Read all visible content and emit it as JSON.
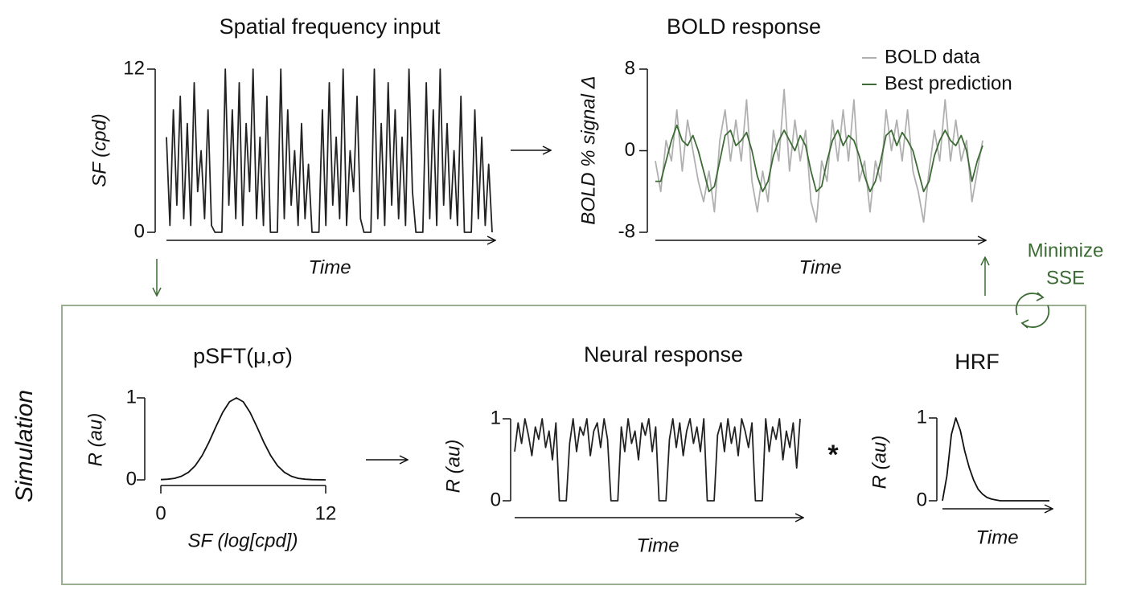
{
  "chart_data": [
    {
      "type": "line",
      "title": "Spatial frequency input",
      "ylabel": "SF (cpd)",
      "xlabel": "Time",
      "ylim": [
        0,
        12
      ],
      "yticks": [
        0,
        12
      ],
      "color": "#222222",
      "values": [
        7,
        0.5,
        9,
        2,
        10,
        1,
        8,
        0.5,
        11,
        3,
        6,
        1,
        9,
        0.5,
        0,
        0,
        0,
        12,
        2,
        9,
        1,
        11,
        0.5,
        8,
        3,
        12,
        1,
        7,
        0.5,
        10,
        0,
        0,
        0,
        12,
        1,
        9,
        2,
        6,
        0.5,
        8,
        1,
        5,
        0,
        0,
        0,
        9,
        0.5,
        11,
        2,
        7,
        1,
        12,
        0.5,
        6,
        3,
        10,
        1,
        0,
        0,
        0,
        12,
        1,
        8,
        0.5,
        11,
        2,
        9,
        1,
        7,
        0.5,
        12,
        3,
        0,
        0,
        0,
        11,
        1,
        9,
        0.5,
        12,
        2,
        8,
        1,
        6,
        0.5,
        10,
        0,
        0,
        0,
        9,
        1,
        7,
        0.5,
        5,
        0
      ]
    },
    {
      "type": "line",
      "title": "BOLD response",
      "ylabel": "BOLD % signal Δ",
      "xlabel": "Time",
      "ylim": [
        -8,
        8
      ],
      "yticks": [
        {
          "value": -8,
          "label": "-8"
        },
        0,
        8
      ],
      "series": [
        {
          "name": "BOLD data",
          "color": "#b0b0b0",
          "values": [
            -1,
            -4,
            1,
            -1,
            4,
            -2,
            3,
            0,
            -3,
            -5,
            -2,
            -6,
            1,
            4,
            -1,
            3,
            -1,
            5,
            -3,
            -6,
            -2,
            -5,
            2,
            -1,
            6,
            -2,
            3,
            -1,
            2,
            -5,
            -7,
            -1,
            -3,
            3,
            -1,
            4,
            -1,
            5,
            -3,
            -1,
            -6,
            -1,
            -3,
            4,
            0,
            3,
            -1,
            4,
            -2,
            -4,
            -7,
            -2,
            2,
            -1,
            5,
            -1,
            3,
            -1,
            1,
            -5,
            -2,
            1
          ]
        },
        {
          "name": "Best prediction",
          "color": "#3d6b35",
          "values": [
            -3,
            -3,
            -1,
            1,
            2.5,
            1,
            0.5,
            1.5,
            0,
            -2,
            -4,
            -3.5,
            -1,
            1.5,
            2,
            0.5,
            1,
            1.8,
            0,
            -2.5,
            -4,
            -3,
            -0.5,
            1,
            2,
            1,
            0,
            1.5,
            0.5,
            -2,
            -4,
            -3.5,
            -1,
            1,
            2,
            0.5,
            1.5,
            1,
            -0.5,
            -2.5,
            -4,
            -3,
            -1,
            1.5,
            2,
            0.5,
            1.8,
            1,
            0,
            -2,
            -4,
            -3,
            -0.5,
            1,
            2,
            1,
            0.5,
            1.5,
            0,
            -3,
            -1,
            0.5
          ]
        }
      ]
    },
    {
      "type": "line",
      "title": "pSFT(μ,σ)",
      "ylabel": "R (au)",
      "xlabel": "SF (log[cpd])",
      "xlim": [
        0,
        12
      ],
      "xticks": [
        0,
        12
      ],
      "ylim": [
        0,
        1
      ],
      "yticks": [
        0,
        1
      ],
      "color": "#111111",
      "x": [
        0,
        0.5,
        1,
        1.5,
        2,
        2.5,
        3,
        3.5,
        4,
        4.5,
        5,
        5.5,
        6,
        6.5,
        7,
        7.5,
        8,
        8.5,
        9,
        9.5,
        10,
        10.5,
        11,
        11.5,
        12
      ],
      "values": [
        0.003,
        0.008,
        0.019,
        0.044,
        0.091,
        0.172,
        0.295,
        0.458,
        0.645,
        0.823,
        0.952,
        1,
        0.952,
        0.823,
        0.645,
        0.458,
        0.295,
        0.172,
        0.091,
        0.044,
        0.019,
        0.008,
        0.003,
        0.001,
        0
      ]
    },
    {
      "type": "line",
      "title": "Neural response",
      "ylabel": "R (au)",
      "xlabel": "Time",
      "ylim": [
        0,
        1
      ],
      "yticks": [
        0,
        1
      ],
      "color": "#222222",
      "values": [
        0.6,
        0.95,
        0.7,
        1,
        0.8,
        0.55,
        0.9,
        0.75,
        1,
        0.65,
        0.85,
        0.5,
        0.95,
        0,
        0,
        0,
        0.7,
        1,
        0.6,
        0.9,
        0.8,
        1,
        0.55,
        0.85,
        0.95,
        0.65,
        1,
        0.75,
        0,
        0,
        0,
        0.9,
        0.6,
        1,
        0.7,
        0.85,
        0.5,
        0.95,
        0.8,
        1,
        0.6,
        0.9,
        0,
        0,
        0,
        0.75,
        1,
        0.65,
        0.95,
        0.55,
        0.85,
        1,
        0.7,
        0.9,
        0.6,
        1,
        0,
        0,
        0,
        0.8,
        0.95,
        0.6,
        1,
        0.7,
        0.9,
        0.55,
        1,
        0.85,
        0.65,
        0.95,
        0,
        0,
        0,
        1,
        0.6,
        0.9,
        0.75,
        1,
        0.5,
        0.85,
        0.65,
        0.95,
        0.4,
        1
      ]
    },
    {
      "type": "line",
      "title": "HRF",
      "ylabel": "R (au)",
      "xlabel": "Time",
      "ylim": [
        0,
        1
      ],
      "yticks": [
        0,
        1
      ],
      "color": "#111111",
      "values": [
        0,
        0.3,
        0.8,
        1,
        0.85,
        0.6,
        0.4,
        0.25,
        0.14,
        0.08,
        0.04,
        0.02,
        0.01,
        0,
        0,
        0,
        0,
        0,
        0,
        0,
        0,
        0,
        0,
        0,
        0
      ]
    }
  ],
  "labels": {
    "simulation": "Simulation",
    "minimize": [
      "Minimize",
      "SSE"
    ],
    "convolve": "*"
  }
}
